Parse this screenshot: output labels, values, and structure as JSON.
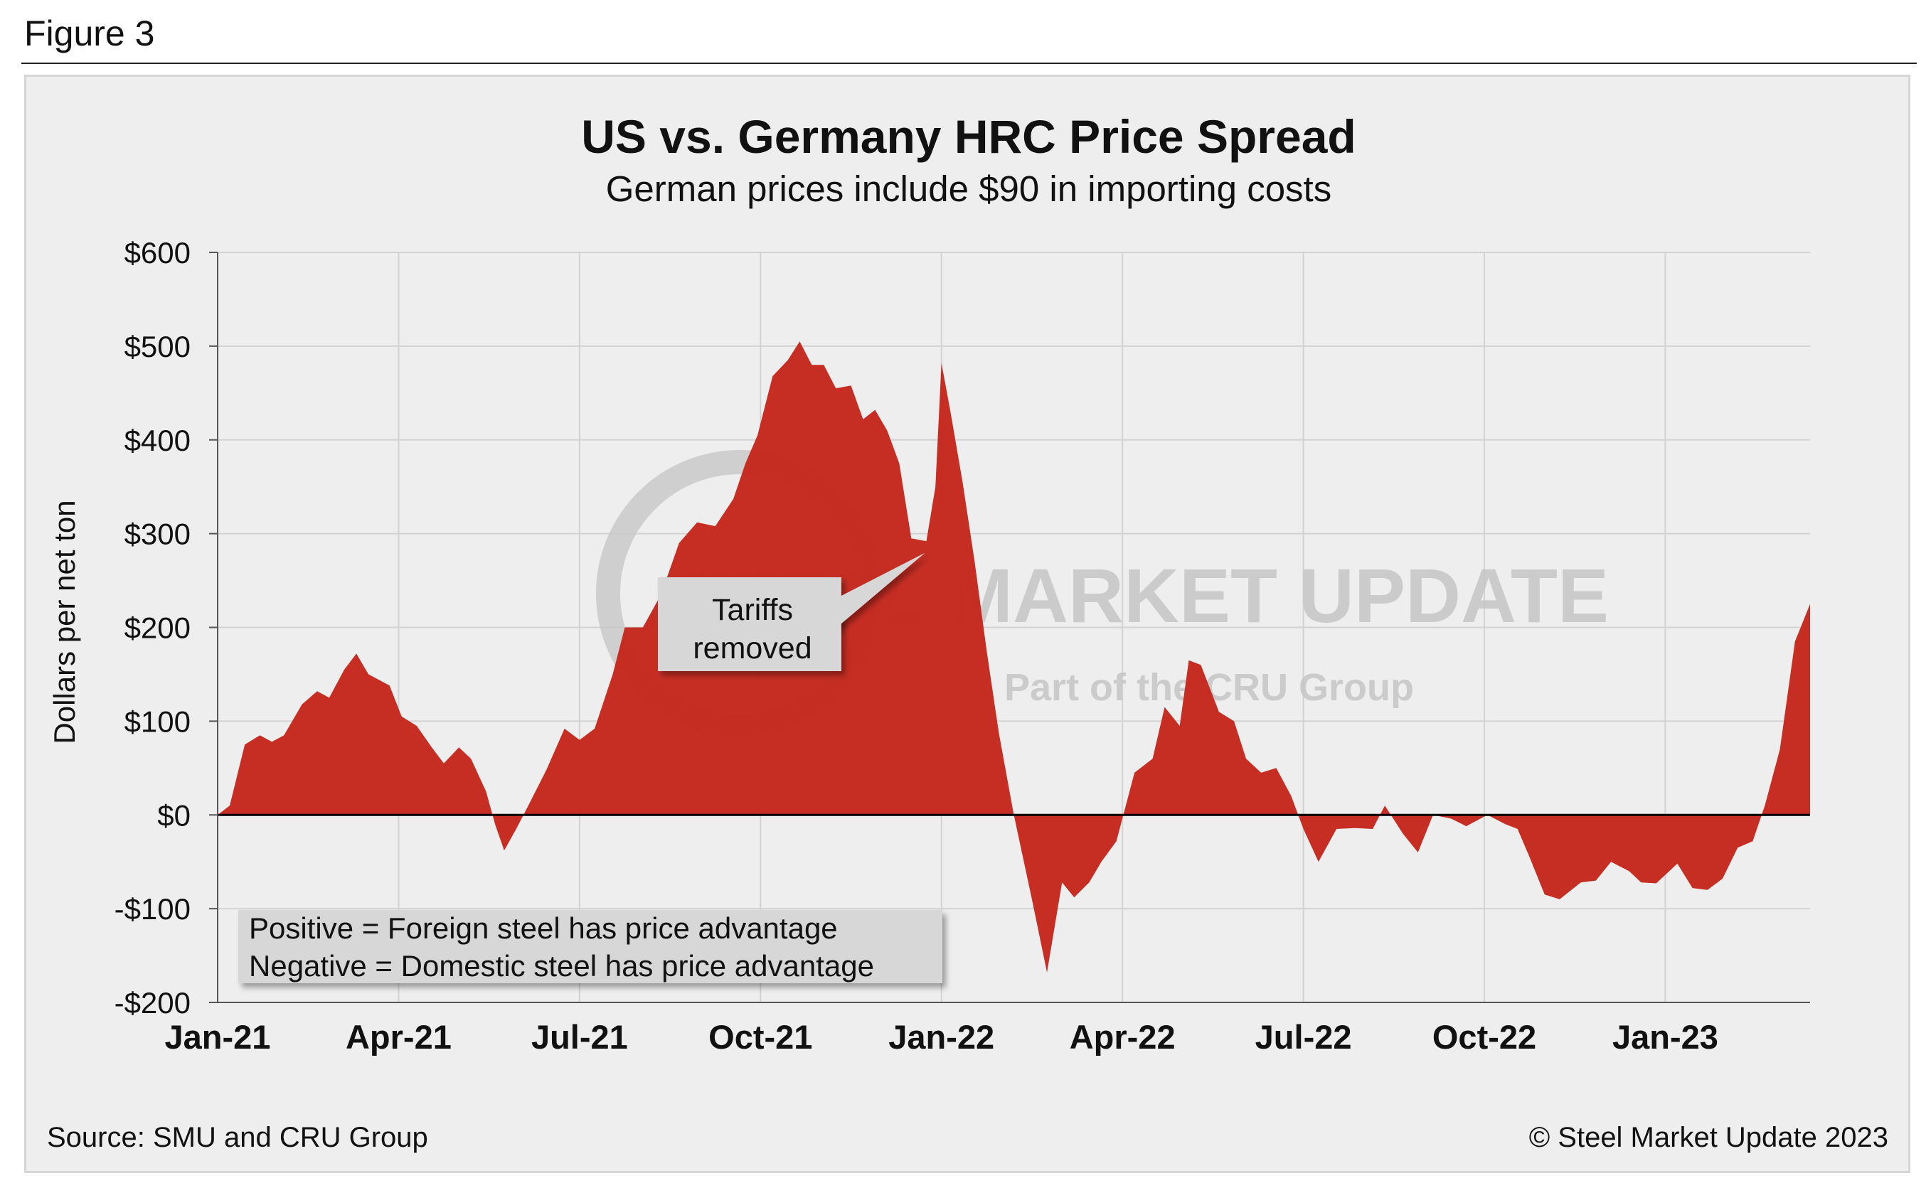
{
  "figure_label": "Figure 3",
  "footer": {
    "source": "Source: SMU and CRU Group",
    "copyright": "© Steel Market Update 2023"
  },
  "watermark": {
    "brand": "STEEL MARKET UPDATE",
    "tagline": "Part of the CRU Group"
  },
  "colors": {
    "fill": "#c4271d",
    "panel": "#eeeeee",
    "grid": "#d2d2d2"
  },
  "chart_data": {
    "type": "area",
    "title": "US vs. Germany HRC Price Spread",
    "subtitle": "German prices include $90 in importing costs",
    "ylabel": "Dollars per net ton",
    "xlabel": "",
    "ylim": [
      -200,
      600
    ],
    "yticks": [
      600,
      500,
      400,
      300,
      200,
      100,
      0,
      -100,
      -200
    ],
    "ytick_labels": [
      "$600",
      "$500",
      "$400",
      "$300",
      "$200",
      "$100",
      "$0",
      "-$100",
      "-$200"
    ],
    "xtick_labels": [
      "Jan-21",
      "Apr-21",
      "Jul-21",
      "Oct-21",
      "Jan-22",
      "Apr-22",
      "Jul-22",
      "Oct-22",
      "Jan-23"
    ],
    "x_unit": "months since Jan-21",
    "xlim": [
      0,
      26.4
    ],
    "grid": true,
    "series": [
      {
        "name": "US vs. Germany HRC spread",
        "x": [
          0,
          0.2,
          0.45,
          0.7,
          0.9,
          1.1,
          1.4,
          1.65,
          1.85,
          2.1,
          2.3,
          2.5,
          2.85,
          3.05,
          3.3,
          3.55,
          3.75,
          4.0,
          4.2,
          4.45,
          4.6,
          4.75,
          4.95,
          5.15,
          5.45,
          5.75,
          6.0,
          6.25,
          6.55,
          6.75,
          7.05,
          7.35,
          7.65,
          7.95,
          8.25,
          8.55,
          8.75,
          8.95,
          9.2,
          9.45,
          9.65,
          9.85,
          10.05,
          10.25,
          10.5,
          10.7,
          10.9,
          11.1,
          11.3,
          11.5,
          11.75,
          11.9,
          12.0,
          12.15,
          12.35,
          12.55,
          12.75,
          12.95,
          13.2,
          13.5,
          13.75,
          14.0,
          14.2,
          14.45,
          14.65,
          14.9,
          15.2,
          15.5,
          15.7,
          15.95,
          16.1,
          16.3,
          16.6,
          16.85,
          17.05,
          17.3,
          17.55,
          17.8,
          18.0,
          18.25,
          18.55,
          18.85,
          19.15,
          19.35,
          19.65,
          19.9,
          20.15,
          20.45,
          20.7,
          21.05,
          21.35,
          21.55,
          21.75,
          22.0,
          22.25,
          22.6,
          22.85,
          23.1,
          23.4,
          23.6,
          23.85,
          24.2,
          24.45,
          24.7,
          24.95,
          25.2,
          25.45,
          25.65,
          25.9,
          26.15,
          26.4
        ],
        "values": [
          0,
          10,
          75,
          85,
          78,
          85,
          118,
          132,
          125,
          155,
          172,
          150,
          138,
          105,
          95,
          72,
          55,
          72,
          60,
          25,
          -10,
          -38,
          -15,
          10,
          48,
          92,
          80,
          92,
          150,
          200,
          200,
          235,
          290,
          312,
          308,
          337,
          375,
          405,
          468,
          485,
          505,
          480,
          480,
          455,
          458,
          422,
          432,
          410,
          375,
          295,
          292,
          350,
          482,
          430,
          355,
          270,
          175,
          88,
          0,
          -90,
          -168,
          -72,
          -88,
          -72,
          -50,
          -28,
          45,
          60,
          115,
          95,
          165,
          160,
          110,
          100,
          60,
          45,
          50,
          20,
          -15,
          -50,
          -15,
          -14,
          -15,
          10,
          -20,
          -40,
          0,
          -4,
          -12,
          0,
          -10,
          -15,
          -45,
          -85,
          -90,
          -72,
          -70,
          -50,
          -60,
          -72,
          -73,
          -52,
          -78,
          -80,
          -68,
          -35,
          -28,
          10,
          70,
          185,
          225
        ]
      }
    ],
    "annotations": [
      {
        "text_lines": [
          "Tariffs",
          "removed"
        ]
      },
      {
        "text_lines": [
          "Positive = Foreign steel has price advantage",
          "Negative = Domestic steel has price advantage"
        ]
      }
    ]
  }
}
